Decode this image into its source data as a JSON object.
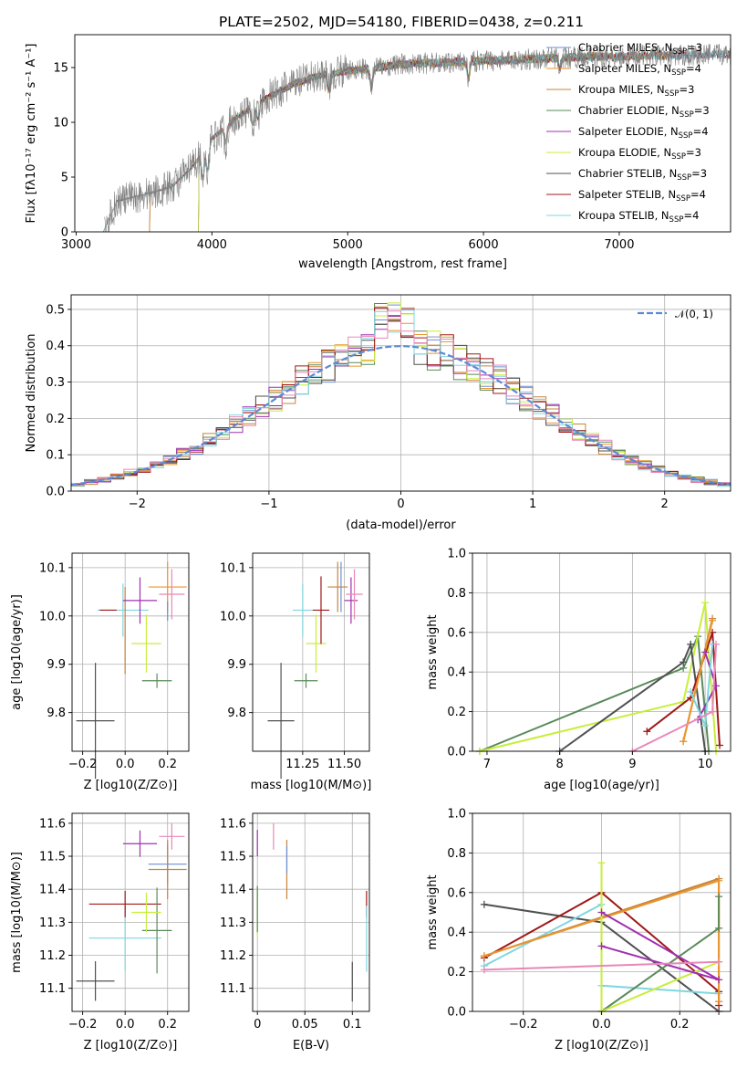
{
  "figure": {
    "title": "PLATE=2502, MJD=54180, FIBERID=0438, z=0.211"
  },
  "colors": {
    "Chabrier MILES": "#6b8fd8",
    "Salpeter MILES": "#e8962e",
    "Kroupa MILES": "#c8843a",
    "Chabrier ELODIE": "#5a8a5a",
    "Salpeter ELODIE": "#a030b0",
    "Kroupa ELODIE": "#c8ee3a",
    "Chabrier STELIB": "#505050",
    "Salpeter STELIB": "#a01818",
    "Kroupa STELIB": "#80d6e0",
    "pink": "#e888b8",
    "normal": "#5b8ad6"
  },
  "chart_data": [
    {
      "id": "spectrum",
      "type": "line",
      "title": "PLATE=2502, MJD=54180, FIBERID=0438, z=0.211",
      "xlabel": "wavelength [Angstrom, rest frame]",
      "ylabel": "Flux [fλ10⁻¹⁷ erg cm⁻² s⁻¹ A⁻¹]",
      "xlim": [
        2990,
        7820
      ],
      "ylim": [
        0,
        18
      ],
      "xticks": [
        3000,
        4000,
        5000,
        6000,
        7000
      ],
      "yticks": [
        0,
        5,
        10,
        15
      ],
      "grid": false,
      "legend_position": "top-right",
      "continuum": {
        "x": [
          3200,
          3300,
          3500,
          3700,
          3850,
          4000,
          4200,
          4400,
          4600,
          4800,
          5000,
          5200,
          5400,
          5600,
          5800,
          6000,
          6200,
          6400,
          6600,
          6800,
          7000,
          7200,
          7400,
          7600,
          7820
        ],
        "y": [
          0,
          2.8,
          3.4,
          4.1,
          5.8,
          8.5,
          10.6,
          12.2,
          13.5,
          14.3,
          14.7,
          15.0,
          15.3,
          15.4,
          15.5,
          15.6,
          15.7,
          15.8,
          15.9,
          16.0,
          16.0,
          16.1,
          16.1,
          16.2,
          16.2
        ]
      },
      "series": [
        {
          "name": "Chabrier MILES, N_SSP=3",
          "label_main": "Chabrier MILES, N",
          "label_sub": "SSP",
          "label_tail": "=3",
          "start": 3540,
          "end": 7820
        },
        {
          "name": "Salpeter MILES, N_SSP=4",
          "label_main": "Salpeter MILES, N",
          "label_sub": "SSP",
          "label_tail": "=4",
          "start": 3540,
          "end": 7400
        },
        {
          "name": "Kroupa MILES, N_SSP=3",
          "label_main": "Kroupa MILES, N",
          "label_sub": "SSP",
          "label_tail": "=3",
          "start": 3540,
          "end": 7400
        },
        {
          "name": "Chabrier ELODIE, N_SSP=3",
          "label_main": "Chabrier ELODIE, N",
          "label_sub": "SSP",
          "label_tail": "=3",
          "start": 3900,
          "end": 6800
        },
        {
          "name": "Salpeter ELODIE, N_SSP=4",
          "label_main": "Salpeter ELODIE, N",
          "label_sub": "SSP",
          "label_tail": "=4",
          "start": 3900,
          "end": 6800
        },
        {
          "name": "Kroupa ELODIE, N_SSP=3",
          "label_main": "Kroupa ELODIE, N",
          "label_sub": "SSP",
          "label_tail": "=3",
          "start": 3900,
          "end": 6800
        },
        {
          "name": "Chabrier STELIB, N_SSP=3",
          "label_main": "Chabrier STELIB, N",
          "label_sub": "SSP",
          "label_tail": "=3",
          "start": 3200,
          "end": 7820
        },
        {
          "name": "Salpeter STELIB, N_SSP=4",
          "label_main": "Salpeter STELIB, N",
          "label_sub": "SSP",
          "label_tail": "=4",
          "start": 3200,
          "end": 7820
        },
        {
          "name": "Kroupa STELIB, N_SSP=4",
          "label_main": "Kroupa STELIB, N",
          "label_sub": "SSP",
          "label_tail": "=4",
          "start": 3200,
          "end": 7820
        }
      ]
    },
    {
      "id": "residuals",
      "type": "line",
      "xlabel": "(data-model)/error",
      "ylabel": "Normed distribution",
      "xlim": [
        -2.5,
        2.5
      ],
      "ylim": [
        0,
        0.54
      ],
      "xticks": [
        -2,
        -1,
        0,
        1,
        2
      ],
      "yticks": [
        0.0,
        0.1,
        0.2,
        0.3,
        0.4,
        0.5
      ],
      "grid": true,
      "legend_position": "top-right",
      "reference": {
        "name": "N(0,1)",
        "label": "𝒩(0, 1)",
        "mean": 0,
        "sigma": 1
      },
      "bin_width": 0.1,
      "bin_start": -2.5
    },
    {
      "id": "age_vs_Z",
      "type": "scatter",
      "xlabel": "Z [log10(Z/Z⊙)]",
      "ylabel": "age  [log10(age/yr)]",
      "xlim": [
        -0.25,
        0.3
      ],
      "ylim": [
        9.72,
        10.13
      ],
      "xticks": [
        -0.2,
        0.0,
        0.2
      ],
      "yticks": [
        9.8,
        9.9,
        10.0,
        10.1
      ],
      "grid": true,
      "points": [
        {
          "series": "Chabrier STELIB",
          "x": -0.14,
          "y": 9.783,
          "xerr": 0.09,
          "yerr": 0.12
        },
        {
          "series": "Kroupa STELIB",
          "x": -0.01,
          "y": 10.012,
          "xerr": 0.12,
          "yerr": 0.055
        },
        {
          "series": "Salpeter STELIB",
          "x": -0.08,
          "y": 10.012,
          "xerr": 0.04,
          "yerr": 0.0
        },
        {
          "series": "Kroupa MILES",
          "x": 0.0,
          "y": 9.97,
          "xerr": 0.0,
          "yerr": 0.09
        },
        {
          "series": "Salpeter ELODIE",
          "x": 0.07,
          "y": 10.032,
          "xerr": 0.08,
          "yerr": 0.048
        },
        {
          "series": "Kroupa ELODIE",
          "x": 0.1,
          "y": 9.943,
          "xerr": 0.07,
          "yerr": 0.06
        },
        {
          "series": "Chabrier ELODIE",
          "x": 0.15,
          "y": 9.866,
          "xerr": 0.07,
          "yerr": 0.015
        },
        {
          "series": "Salpeter MILES",
          "x": 0.2,
          "y": 10.06,
          "xerr": 0.09,
          "yerr": 0.052
        },
        {
          "series": "pink",
          "x": 0.22,
          "y": 10.045,
          "xerr": 0.06,
          "yerr": 0.052
        },
        {
          "series": "Chabrier MILES",
          "x": 0.2,
          "y": 10.01,
          "xerr": 0.0,
          "yerr": 0.02
        }
      ]
    },
    {
      "id": "age_vs_mass",
      "type": "scatter",
      "xlabel": "mass [log10(M/M⊙)]",
      "ylabel": "",
      "xlim": [
        10.95,
        11.65
      ],
      "ylim": [
        9.72,
        10.13
      ],
      "xticks": [
        11.25,
        11.5
      ],
      "yticks": [
        9.8,
        9.9,
        10.0,
        10.1
      ],
      "grid": true,
      "points": [
        {
          "series": "Chabrier STELIB",
          "x": 11.12,
          "y": 9.783,
          "xerr": 0.08,
          "yerr": 0.12
        },
        {
          "series": "Kroupa STELIB",
          "x": 11.25,
          "y": 10.012,
          "xerr": 0.06,
          "yerr": 0.055
        },
        {
          "series": "Chabrier ELODIE",
          "x": 11.27,
          "y": 9.866,
          "xerr": 0.07,
          "yerr": 0.015
        },
        {
          "series": "Kroupa ELODIE",
          "x": 11.33,
          "y": 9.943,
          "xerr": 0.06,
          "yerr": 0.06
        },
        {
          "series": "Salpeter STELIB",
          "x": 11.36,
          "y": 10.012,
          "xerr": 0.05,
          "yerr": 0.07
        },
        {
          "series": "Kroupa MILES",
          "x": 11.46,
          "y": 10.06,
          "xerr": 0.06,
          "yerr": 0.052
        },
        {
          "series": "Chabrier MILES",
          "x": 11.48,
          "y": 10.06,
          "xerr": 0.0,
          "yerr": 0.052
        },
        {
          "series": "Salpeter ELODIE",
          "x": 11.54,
          "y": 10.032,
          "xerr": 0.04,
          "yerr": 0.048
        },
        {
          "series": "pink",
          "x": 11.56,
          "y": 10.045,
          "xerr": 0.05,
          "yerr": 0.052
        }
      ]
    },
    {
      "id": "weight_vs_age",
      "type": "line",
      "xlabel": "age  [log10(age/yr)]",
      "ylabel": "mass weight",
      "xlim": [
        6.8,
        10.35
      ],
      "ylim": [
        0,
        1
      ],
      "xticks": [
        7,
        8,
        9,
        10
      ],
      "yticks": [
        0.0,
        0.2,
        0.4,
        0.6,
        0.8,
        1.0
      ],
      "grid": true,
      "series": [
        {
          "series": "Chabrier ELODIE",
          "x": [
            6.9,
            9.7,
            9.9,
            10.05
          ],
          "y": [
            0.0,
            0.42,
            0.58,
            0.0
          ]
        },
        {
          "series": "Kroupa ELODIE",
          "x": [
            6.9,
            9.7,
            10.0,
            10.15
          ],
          "y": [
            0.0,
            0.25,
            0.75,
            0.0
          ]
        },
        {
          "series": "Chabrier STELIB",
          "x": [
            8.0,
            9.7,
            9.8,
            10.0
          ],
          "y": [
            0.0,
            0.45,
            0.54,
            0.0
          ]
        },
        {
          "series": "Salpeter STELIB",
          "x": [
            9.2,
            9.8,
            10.1,
            10.2
          ],
          "y": [
            0.1,
            0.27,
            0.6,
            0.03
          ]
        },
        {
          "series": "Kroupa MILES",
          "x": [
            9.7,
            10.1
          ],
          "y": [
            0.05,
            0.67
          ]
        },
        {
          "series": "Salpeter MILES",
          "x": [
            9.7,
            10.1
          ],
          "y": [
            0.05,
            0.66
          ]
        },
        {
          "series": "Salpeter ELODIE",
          "x": [
            9.9,
            10.15,
            10.0
          ],
          "y": [
            0.16,
            0.33,
            0.5
          ]
        },
        {
          "series": "Kroupa STELIB",
          "x": [
            9.8,
            10.0,
            10.1
          ],
          "y": [
            0.3,
            0.13,
            0.54
          ]
        },
        {
          "series": "pink",
          "x": [
            9.0,
            10.1,
            10.15
          ],
          "y": [
            0.0,
            0.2,
            0.54
          ]
        }
      ]
    },
    {
      "id": "mass_vs_Z",
      "type": "scatter",
      "xlabel": "Z [log10(Z/Z⊙)]",
      "ylabel": "mass [log10(M/M⊙)]",
      "xlim": [
        -0.25,
        0.3
      ],
      "ylim": [
        11.03,
        11.63
      ],
      "xticks": [
        -0.2,
        0.0,
        0.2
      ],
      "yticks": [
        11.1,
        11.2,
        11.3,
        11.4,
        11.5,
        11.6
      ],
      "grid": true,
      "points": [
        {
          "series": "Chabrier STELIB",
          "x": -0.14,
          "y": 11.122,
          "xerr": 0.09,
          "yerr": 0.06
        },
        {
          "series": "Kroupa STELIB",
          "x": 0.0,
          "y": 11.252,
          "xerr": 0.17,
          "yerr": 0.1
        },
        {
          "series": "Salpeter STELIB",
          "x": 0.0,
          "y": 11.355,
          "xerr": 0.17,
          "yerr": 0.04
        },
        {
          "series": "Chabrier ELODIE",
          "x": 0.15,
          "y": 11.275,
          "xerr": 0.07,
          "yerr": 0.13
        },
        {
          "series": "Kroupa ELODIE",
          "x": 0.1,
          "y": 11.33,
          "xerr": 0.07,
          "yerr": 0.06
        },
        {
          "series": "Salpeter ELODIE",
          "x": 0.07,
          "y": 11.538,
          "xerr": 0.08,
          "yerr": 0.04
        },
        {
          "series": "Chabrier MILES",
          "x": 0.2,
          "y": 11.476,
          "xerr": 0.09,
          "yerr": 0.06
        },
        {
          "series": "Kroupa MILES",
          "x": 0.2,
          "y": 11.46,
          "xerr": 0.09,
          "yerr": 0.09
        },
        {
          "series": "pink",
          "x": 0.22,
          "y": 11.56,
          "xerr": 0.06,
          "yerr": 0.04
        }
      ]
    },
    {
      "id": "mass_vs_ebv",
      "type": "scatter",
      "xlabel": "E(B-V)",
      "ylabel": "",
      "xlim": [
        -0.005,
        0.118
      ],
      "ylim": [
        11.03,
        11.63
      ],
      "xticks": [
        0.0,
        0.05,
        0.1
      ],
      "yticks": [
        11.1,
        11.2,
        11.3,
        11.4,
        11.5,
        11.6
      ],
      "grid": true,
      "points": [
        {
          "series": "Salpeter ELODIE",
          "x": 0.0,
          "y": 11.54,
          "xerr": 0.0,
          "yerr": 0.04
        },
        {
          "series": "Kroupa ELODIE",
          "x": 0.0,
          "y": 11.33,
          "xerr": 0.0,
          "yerr": 0.07
        },
        {
          "series": "Chabrier ELODIE",
          "x": 0.0,
          "y": 11.34,
          "xerr": 0.0,
          "yerr": 0.07
        },
        {
          "series": "pink",
          "x": 0.017,
          "y": 11.56,
          "xerr": 0.0,
          "yerr": 0.04
        },
        {
          "series": "Kroupa MILES",
          "x": 0.031,
          "y": 11.46,
          "xerr": 0.0,
          "yerr": 0.09
        },
        {
          "series": "Chabrier MILES",
          "x": 0.031,
          "y": 11.49,
          "xerr": 0.0,
          "yerr": 0.04
        },
        {
          "series": "Chabrier STELIB",
          "x": 0.1,
          "y": 11.12,
          "xerr": 0.0,
          "yerr": 0.06
        },
        {
          "series": "Salpeter STELIB",
          "x": 0.115,
          "y": 11.355,
          "xerr": 0.0,
          "yerr": 0.04
        },
        {
          "series": "Kroupa STELIB",
          "x": 0.115,
          "y": 11.25,
          "xerr": 0.0,
          "yerr": 0.1
        }
      ]
    },
    {
      "id": "weight_vs_Z",
      "type": "line",
      "xlabel": "Z [log10(Z/Z⊙)]",
      "ylabel": "mass weight",
      "xlim": [
        -0.33,
        0.33
      ],
      "ylim": [
        0,
        1
      ],
      "xticks": [
        -0.2,
        0.0,
        0.2
      ],
      "yticks": [
        0.0,
        0.2,
        0.4,
        0.6,
        0.8,
        1.0
      ],
      "grid": true,
      "series": [
        {
          "series": "Chabrier STELIB",
          "x": [
            -0.3,
            0.0,
            0.3
          ],
          "y": [
            0.54,
            0.45,
            0.0
          ]
        },
        {
          "series": "Salpeter STELIB",
          "x": [
            -0.3,
            0.0,
            0.3,
            0.3
          ],
          "y": [
            0.27,
            0.6,
            0.1,
            0.03
          ]
        },
        {
          "series": "Kroupa STELIB",
          "x": [
            -0.3,
            0.0,
            0.0,
            0.3
          ],
          "y": [
            0.23,
            0.54,
            0.13,
            0.09
          ]
        },
        {
          "series": "Kroupa MILES",
          "x": [
            -0.3,
            0.3,
            0.3
          ],
          "y": [
            0.28,
            0.67,
            0.05
          ]
        },
        {
          "series": "Salpeter MILES",
          "x": [
            -0.3,
            0.3,
            0.3
          ],
          "y": [
            0.28,
            0.66,
            0.05
          ]
        },
        {
          "series": "Chabrier ELODIE",
          "x": [
            0.0,
            0.3,
            0.3
          ],
          "y": [
            0.0,
            0.42,
            0.58
          ]
        },
        {
          "series": "Kroupa ELODIE",
          "x": [
            0.0,
            0.0,
            0.3
          ],
          "y": [
            0.75,
            0.0,
            0.25
          ]
        },
        {
          "series": "Salpeter ELODIE",
          "x": [
            0.0,
            0.3,
            0.0
          ],
          "y": [
            0.33,
            0.16,
            0.5
          ]
        },
        {
          "series": "pink",
          "x": [
            -0.3,
            0.3
          ],
          "y": [
            0.21,
            0.25
          ]
        }
      ]
    }
  ]
}
